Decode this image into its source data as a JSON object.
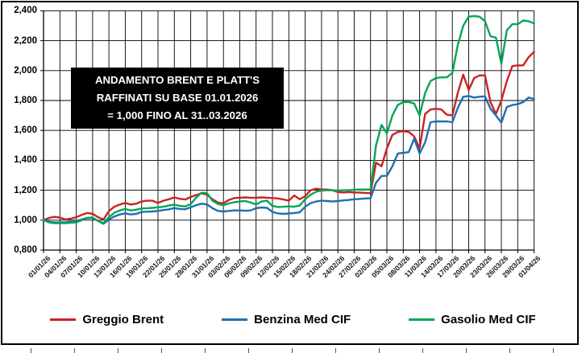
{
  "window": {
    "bg": "#ffffff",
    "border_color": "#000000"
  },
  "title_box": {
    "bg": "#000000",
    "text_color": "#ffffff",
    "lines": [
      "ANDAMENTO BRENT E PLATT'S",
      "RAFFINATI SU BASE 01.01.2026",
      "= 1,000 FINO AL 31..03.2026"
    ]
  },
  "chart_data": {
    "type": "line",
    "title": "ANDAMENTO BRENT E PLATT'S RAFFINATI SU BASE 01.01.2026 = 1,000 FINO AL 31..03.2026",
    "xlabel": "",
    "ylabel": "",
    "ylim": [
      0.8,
      2.4
    ],
    "grid": true,
    "legend_position": "bottom",
    "x_is_daily_dates": "01/01/26 to 01/04/26, one point per day, labels every 3 days",
    "y_tick_labels": [
      "0,800",
      "1,000",
      "1,200",
      "1,400",
      "1,600",
      "1,800",
      "2,000",
      "2,200",
      "2,400"
    ],
    "x_tick_labels": [
      "01/01/26",
      "04/01/26",
      "07/01/26",
      "10/01/26",
      "13/01/26",
      "16/01/26",
      "19/01/26",
      "22/01/26",
      "25/01/26",
      "28/01/26",
      "31/01/26",
      "03/02/26",
      "06/02/26",
      "09/02/26",
      "12/02/26",
      "15/02/26",
      "18/02/26",
      "21/02/26",
      "24/02/26",
      "27/02/26",
      "02/03/26",
      "05/03/26",
      "08/03/26",
      "11/03/26",
      "14/03/26",
      "17/03/26",
      "20/03/26",
      "23/03/26",
      "26/03/26",
      "29/03/26",
      "01/04/26"
    ],
    "series": [
      {
        "name": "Greggio Brent",
        "color": "#cc2222",
        "values": [
          1.0,
          1.015,
          1.022,
          1.018,
          1.005,
          1.01,
          1.02,
          1.035,
          1.048,
          1.043,
          1.02,
          1.005,
          1.06,
          1.09,
          1.105,
          1.115,
          1.105,
          1.11,
          1.125,
          1.13,
          1.13,
          1.115,
          1.13,
          1.14,
          1.152,
          1.143,
          1.138,
          1.155,
          1.168,
          1.18,
          1.17,
          1.14,
          1.118,
          1.113,
          1.135,
          1.148,
          1.15,
          1.152,
          1.15,
          1.15,
          1.152,
          1.15,
          1.148,
          1.145,
          1.138,
          1.13,
          1.165,
          1.14,
          1.16,
          1.2,
          1.21,
          1.205,
          1.205,
          1.2,
          1.188,
          1.185,
          1.188,
          1.185,
          1.185,
          1.182,
          1.18,
          1.385,
          1.36,
          1.48,
          1.57,
          1.59,
          1.595,
          1.59,
          1.56,
          1.48,
          1.71,
          1.74,
          1.745,
          1.74,
          1.705,
          1.7,
          1.85,
          1.973,
          1.87,
          1.95,
          1.968,
          1.968,
          1.79,
          1.71,
          1.8,
          1.93,
          2.03,
          2.035,
          2.035,
          2.09,
          2.125
        ]
      },
      {
        "name": "Benzina Med CIF",
        "color": "#1e6fb0",
        "values": [
          1.0,
          0.99,
          0.985,
          0.985,
          0.986,
          0.99,
          0.995,
          1.005,
          1.015,
          1.017,
          0.995,
          0.976,
          1.005,
          1.025,
          1.038,
          1.045,
          1.038,
          1.042,
          1.055,
          1.057,
          1.058,
          1.062,
          1.068,
          1.072,
          1.081,
          1.075,
          1.073,
          1.086,
          1.1,
          1.11,
          1.105,
          1.08,
          1.062,
          1.058,
          1.062,
          1.065,
          1.065,
          1.063,
          1.065,
          1.08,
          1.085,
          1.082,
          1.055,
          1.045,
          1.042,
          1.045,
          1.048,
          1.052,
          1.09,
          1.114,
          1.125,
          1.13,
          1.128,
          1.125,
          1.128,
          1.132,
          1.135,
          1.14,
          1.142,
          1.145,
          1.147,
          1.25,
          1.295,
          1.297,
          1.36,
          1.445,
          1.45,
          1.455,
          1.545,
          1.445,
          1.52,
          1.655,
          1.66,
          1.66,
          1.66,
          1.655,
          1.75,
          1.825,
          1.83,
          1.82,
          1.825,
          1.828,
          1.745,
          1.7,
          1.652,
          1.757,
          1.77,
          1.775,
          1.79,
          1.82,
          1.81
        ]
      },
      {
        "name": "Gasolio Med CIF",
        "color": "#00a755",
        "values": [
          1.0,
          0.985,
          0.98,
          0.98,
          0.98,
          0.982,
          0.985,
          1.0,
          1.013,
          1.015,
          0.995,
          0.98,
          1.02,
          1.05,
          1.065,
          1.075,
          1.065,
          1.07,
          1.078,
          1.08,
          1.082,
          1.086,
          1.09,
          1.098,
          1.103,
          1.095,
          1.092,
          1.108,
          1.15,
          1.184,
          1.18,
          1.13,
          1.108,
          1.1,
          1.112,
          1.12,
          1.125,
          1.128,
          1.118,
          1.105,
          1.125,
          1.13,
          1.095,
          1.088,
          1.09,
          1.092,
          1.09,
          1.098,
          1.14,
          1.17,
          1.19,
          1.198,
          1.2,
          1.2,
          1.198,
          1.2,
          1.2,
          1.203,
          1.205,
          1.205,
          1.205,
          1.5,
          1.637,
          1.58,
          1.7,
          1.77,
          1.79,
          1.79,
          1.78,
          1.7,
          1.85,
          1.93,
          1.95,
          1.955,
          1.955,
          1.985,
          2.17,
          2.3,
          2.36,
          2.365,
          2.36,
          2.33,
          2.23,
          2.22,
          2.045,
          2.27,
          2.31,
          2.31,
          2.335,
          2.33,
          2.315
        ]
      }
    ]
  }
}
